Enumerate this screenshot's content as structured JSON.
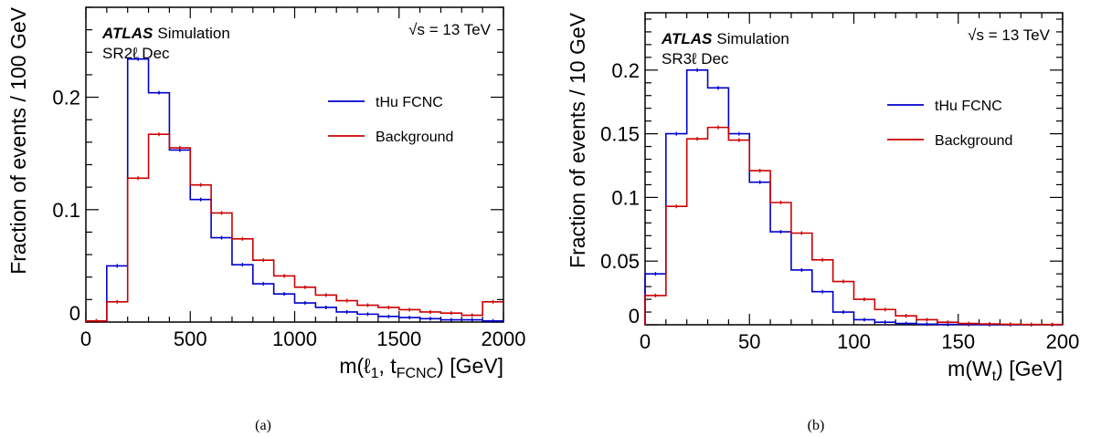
{
  "chart_data": [
    {
      "type": "line",
      "panel_label": "(a)",
      "experiment": "ATLAS",
      "experiment_tag": "Simulation",
      "energy_label": "√s = 13 TeV",
      "region_label": "SR2ℓ Dec",
      "ylabel": "Fraction of events / 100 GeV",
      "xlabel_main": "m(ℓ",
      "xlabel_sub1": "1",
      "xlabel_mid": ", t",
      "xlabel_sub2": "FCNC",
      "xlabel_end": ") [GeV]",
      "xlim": [
        0,
        2000
      ],
      "ylim": [
        0,
        0.28
      ],
      "xticks": [
        0,
        500,
        1000,
        1500,
        2000
      ],
      "xtick_labels": [
        "0",
        "500",
        "1000",
        "1500",
        "2000"
      ],
      "yticks": [
        0,
        0.1,
        0.2
      ],
      "ytick_labels": [
        "0",
        "0.1",
        "0.2"
      ],
      "bin_edges": [
        0,
        100,
        200,
        300,
        400,
        500,
        600,
        700,
        800,
        900,
        1000,
        1100,
        1200,
        1300,
        1400,
        1500,
        1600,
        1700,
        1800,
        1900,
        2000
      ],
      "series": [
        {
          "name": "tHu FCNC",
          "color": "#0000cc",
          "values": [
            0.001,
            0.05,
            0.234,
            0.204,
            0.153,
            0.109,
            0.075,
            0.051,
            0.034,
            0.025,
            0.017,
            0.013,
            0.009,
            0.007,
            0.005,
            0.004,
            0.003,
            0.002,
            0.002,
            0.001
          ]
        },
        {
          "name": "Background",
          "color": "#cc0000",
          "values": [
            0.001,
            0.018,
            0.128,
            0.167,
            0.155,
            0.122,
            0.097,
            0.074,
            0.055,
            0.041,
            0.031,
            0.024,
            0.019,
            0.015,
            0.013,
            0.011,
            0.009,
            0.008,
            0.006,
            0.018
          ]
        }
      ],
      "legend": "right"
    },
    {
      "type": "line",
      "panel_label": "(b)",
      "experiment": "ATLAS",
      "experiment_tag": "Simulation",
      "energy_label": "√s = 13 TeV",
      "region_label": "SR3ℓ Dec",
      "ylabel": "Fraction of events / 10 GeV",
      "xlabel_main": "m(W",
      "xlabel_sub1": "t",
      "xlabel_end": ") [GeV]",
      "xlim": [
        0,
        200
      ],
      "ylim": [
        0,
        0.245
      ],
      "xticks": [
        0,
        50,
        100,
        150,
        200
      ],
      "xtick_labels": [
        "0",
        "50",
        "100",
        "150",
        "200"
      ],
      "yticks": [
        0,
        0.05,
        0.1,
        0.15,
        0.2
      ],
      "ytick_labels": [
        "0",
        "0.05",
        "0.1",
        "0.15",
        "0.2"
      ],
      "bin_edges": [
        0,
        10,
        20,
        30,
        40,
        50,
        60,
        70,
        80,
        90,
        100,
        110,
        120,
        130,
        140,
        150,
        160,
        170,
        180,
        190,
        200
      ],
      "series": [
        {
          "name": "tHu FCNC",
          "color": "#0000cc",
          "values": [
            0.04,
            0.15,
            0.2,
            0.186,
            0.15,
            0.112,
            0.073,
            0.043,
            0.026,
            0.01,
            0.004,
            0.002,
            0.001,
            0.0005,
            0.0003,
            0.0002,
            0.0001,
            0.0001,
            0.0001,
            0.0001
          ]
        },
        {
          "name": "Background",
          "color": "#cc0000",
          "values": [
            0.023,
            0.093,
            0.146,
            0.155,
            0.145,
            0.121,
            0.096,
            0.072,
            0.051,
            0.034,
            0.02,
            0.012,
            0.007,
            0.004,
            0.002,
            0.001,
            0.0007,
            0.0004,
            0.0002,
            0.0002
          ]
        }
      ],
      "legend": "right"
    }
  ]
}
